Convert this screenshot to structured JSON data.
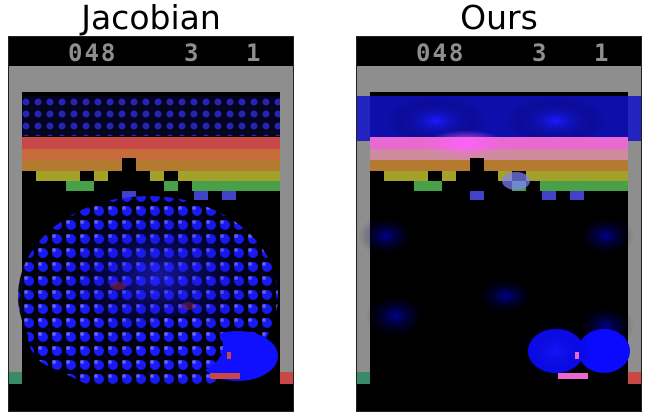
{
  "panels": [
    {
      "title": "Jacobian",
      "score": "048",
      "lives": "3",
      "player": "1"
    },
    {
      "title": "Ours",
      "score": "048",
      "lives": "3",
      "player": "1"
    }
  ],
  "colors": {
    "wall": "#8e8e8e",
    "rows": [
      "#c84848",
      "#c66c3a",
      "#b47a30",
      "#a2a22a",
      "#48a048",
      "#4242c8"
    ],
    "paddle": "#c84848",
    "highlight": "#0000ff"
  }
}
